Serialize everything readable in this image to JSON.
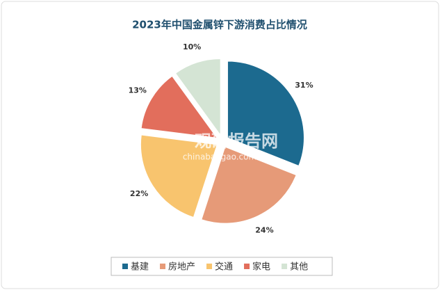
{
  "chart_data": {
    "type": "pie",
    "title": "2023年中国金属锌下游消费占比情况",
    "categories": [
      "基建",
      "房地产",
      "交通",
      "家电",
      "其他"
    ],
    "values": [
      31,
      24,
      22,
      13,
      10
    ],
    "value_labels": [
      "31%",
      "24%",
      "22%",
      "13%",
      "10%"
    ],
    "colors": [
      "#1c6a8f",
      "#e69a78",
      "#f8c46e",
      "#e26e5c",
      "#d4e4d4"
    ],
    "legend": "bottom",
    "watermark": "观研报告网",
    "watermark_url": "chinabaogao.com"
  }
}
